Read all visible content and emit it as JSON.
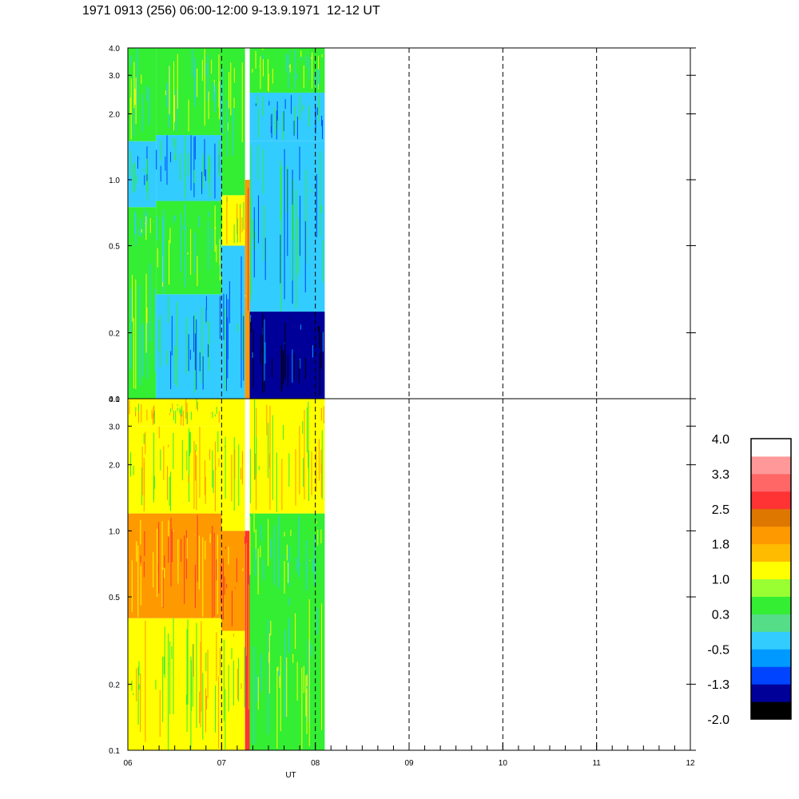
{
  "title": "1971 0913 (256) 06:00-12:00 9-13.9.1971  12-12 UT",
  "chart_data": {
    "type": "heatmap",
    "panels": [
      {
        "yticks": [
          0.1,
          0.2,
          0.5,
          1.0,
          2.0,
          3.0,
          4.0
        ],
        "ytick_labels": [
          "0.1",
          "0.2",
          "0.5",
          "1.0",
          "2.0",
          "3.0",
          "4.0"
        ],
        "ylim": [
          0.1,
          4.0
        ],
        "yscale": "log",
        "data_x_range": [
          6.0,
          8.1
        ],
        "bands": [
          {
            "x": [
              6.0,
              6.3
            ],
            "y": [
              0.1,
              0.5
            ],
            "level": 0.3
          },
          {
            "x": [
              6.0,
              6.3
            ],
            "y": [
              0.5,
              0.75
            ],
            "level": 0.3
          },
          {
            "x": [
              6.0,
              6.3
            ],
            "y": [
              0.75,
              1.5
            ],
            "level": -0.5
          },
          {
            "x": [
              6.0,
              6.3
            ],
            "y": [
              1.5,
              4.0
            ],
            "level": 0.3
          },
          {
            "x": [
              6.3,
              7.0
            ],
            "y": [
              0.1,
              0.3
            ],
            "level": -0.5
          },
          {
            "x": [
              6.3,
              7.0
            ],
            "y": [
              0.3,
              0.8
            ],
            "level": 0.3
          },
          {
            "x": [
              6.3,
              7.0
            ],
            "y": [
              0.8,
              1.6
            ],
            "level": -0.5
          },
          {
            "x": [
              6.3,
              7.0
            ],
            "y": [
              1.6,
              4.0
            ],
            "level": 0.3
          },
          {
            "x": [
              7.0,
              7.25
            ],
            "y": [
              0.1,
              0.5
            ],
            "level": -0.5
          },
          {
            "x": [
              7.0,
              7.25
            ],
            "y": [
              0.5,
              0.85
            ],
            "level": 1.0
          },
          {
            "x": [
              7.0,
              7.25
            ],
            "y": [
              0.85,
              4.0
            ],
            "level": 0.3
          },
          {
            "x": [
              7.25,
              7.3
            ],
            "y": [
              0.1,
              1.0
            ],
            "level": 1.8
          },
          {
            "x": [
              7.3,
              8.1
            ],
            "y": [
              0.1,
              0.25
            ],
            "level": -1.3
          },
          {
            "x": [
              7.3,
              8.1
            ],
            "y": [
              0.25,
              1.5
            ],
            "level": -0.5
          },
          {
            "x": [
              7.3,
              8.1
            ],
            "y": [
              1.5,
              2.5
            ],
            "level": -0.5
          },
          {
            "x": [
              7.3,
              8.1
            ],
            "y": [
              2.5,
              4.0
            ],
            "level": 0.3
          }
        ]
      },
      {
        "yticks": [
          0.1,
          0.2,
          0.5,
          1.0,
          2.0,
          3.0,
          4.0
        ],
        "ytick_labels": [
          "0.1",
          "0.2",
          "0.5",
          "1.0",
          "2.0",
          "3.0",
          "4.0"
        ],
        "ylim": [
          0.1,
          4.0
        ],
        "yscale": "log",
        "data_x_range": [
          6.0,
          8.1
        ],
        "bands": [
          {
            "x": [
              6.0,
              7.0
            ],
            "y": [
              0.1,
              0.4
            ],
            "level": 1.0
          },
          {
            "x": [
              6.0,
              7.0
            ],
            "y": [
              0.4,
              1.2
            ],
            "level": 1.8
          },
          {
            "x": [
              6.0,
              7.0
            ],
            "y": [
              1.2,
              3.0
            ],
            "level": 1.0
          },
          {
            "x": [
              6.0,
              7.0
            ],
            "y": [
              3.0,
              4.0
            ],
            "level": 1.0
          },
          {
            "x": [
              7.0,
              7.25
            ],
            "y": [
              0.1,
              0.35
            ],
            "level": 1.0
          },
          {
            "x": [
              7.0,
              7.25
            ],
            "y": [
              0.35,
              1.0
            ],
            "level": 1.8
          },
          {
            "x": [
              7.0,
              7.25
            ],
            "y": [
              1.0,
              4.0
            ],
            "level": 1.0
          },
          {
            "x": [
              7.25,
              7.3
            ],
            "y": [
              0.1,
              1.0
            ],
            "level": 2.5
          },
          {
            "x": [
              7.3,
              8.1
            ],
            "y": [
              0.1,
              0.5
            ],
            "level": 0.3
          },
          {
            "x": [
              7.3,
              8.1
            ],
            "y": [
              0.5,
              1.2
            ],
            "level": 0.3
          },
          {
            "x": [
              7.3,
              8.1
            ],
            "y": [
              1.2,
              4.0
            ],
            "level": 1.0
          }
        ]
      }
    ],
    "x": {
      "label": "UT",
      "lim": [
        6,
        12
      ],
      "ticks": [
        6,
        7,
        8,
        9,
        10,
        11,
        12
      ],
      "tick_labels": [
        "06",
        "07",
        "08",
        "09",
        "10",
        "11",
        "12"
      ],
      "minor_step": 0.1666667,
      "dashed_gridlines": [
        7,
        8,
        9,
        10,
        11
      ]
    },
    "colorbar": {
      "labels": [
        "4.0",
        "3.3",
        "2.5",
        "1.8",
        "1.0",
        "0.3",
        "-0.5",
        "-1.3",
        "-2.0"
      ],
      "colors": [
        "#000000",
        "#000099",
        "#0044ff",
        "#0099ff",
        "#33ccff",
        "#55dd88",
        "#33ee33",
        "#99ff33",
        "#ffff00",
        "#ffbb00",
        "#ff9900",
        "#dd7700",
        "#ff3333",
        "#ff6666",
        "#ff9999",
        "#ffffff"
      ],
      "min": -2.0,
      "max": 4.0
    }
  }
}
